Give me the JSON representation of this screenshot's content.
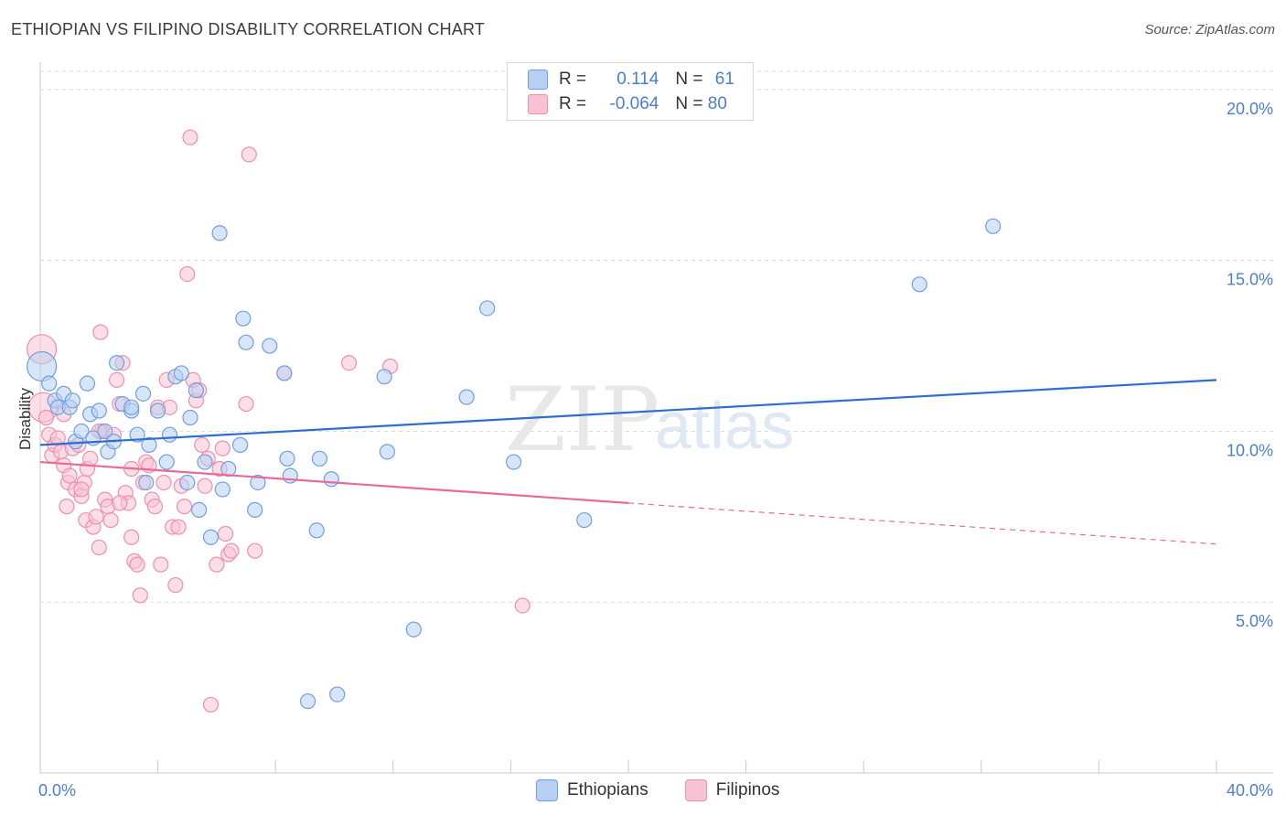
{
  "title": "ETHIOPIAN VS FILIPINO DISABILITY CORRELATION CHART",
  "source": "Source: ZipAtlas.com",
  "watermark": {
    "zip": "ZIP",
    "atlas": "atlas"
  },
  "legend": {
    "rows": [
      {
        "r_label": "R = ",
        "r_value": "0.114",
        "n_label": "N = ",
        "n_value": "61"
      },
      {
        "r_label": "R = ",
        "r_value": "-0.064",
        "n_label": "N = ",
        "n_value": "80"
      }
    ]
  },
  "colors": {
    "ethiopians_fill": "#b7cff2",
    "ethiopians_stroke": "#6f9fe0",
    "ethiopians_line": "#2f6fcc",
    "filipinos_fill": "#f9c2d4",
    "filipinos_stroke": "#ee8fb0",
    "filipinos_line": "#e76a97"
  },
  "chart_data": {
    "type": "scatter",
    "title": "ETHIOPIAN VS FILIPINO DISABILITY CORRELATION CHART",
    "xlabel": "",
    "ylabel": "Disability",
    "xlim": [
      0,
      40
    ],
    "ylim": [
      0,
      20.8
    ],
    "x_tick_labels": {
      "left": "0.0%",
      "right": "40.0%"
    },
    "y_ticks": [
      {
        "value": 5,
        "label": "5.0%"
      },
      {
        "value": 10,
        "label": "10.0%"
      },
      {
        "value": 15,
        "label": "15.0%"
      },
      {
        "value": 20,
        "label": "20.0%"
      }
    ],
    "series": [
      {
        "name": "Ethiopians",
        "r": 0.114,
        "n": 61,
        "trend": {
          "x0": 0,
          "y0": 9.6,
          "x1": 40,
          "y1": 11.5,
          "dashed_from": null
        },
        "points": [
          [
            0.05,
            11.9
          ],
          [
            0.3,
            11.4
          ],
          [
            0.5,
            10.9
          ],
          [
            0.6,
            10.7
          ],
          [
            0.8,
            11.1
          ],
          [
            1.0,
            10.7
          ],
          [
            1.1,
            10.9
          ],
          [
            1.2,
            9.7
          ],
          [
            1.4,
            10.0
          ],
          [
            1.6,
            11.4
          ],
          [
            1.7,
            10.5
          ],
          [
            1.8,
            9.8
          ],
          [
            2.0,
            10.6
          ],
          [
            2.2,
            10.0
          ],
          [
            2.3,
            9.4
          ],
          [
            2.6,
            12.0
          ],
          [
            2.8,
            10.8
          ],
          [
            3.1,
            10.6
          ],
          [
            3.3,
            9.9
          ],
          [
            3.5,
            11.1
          ],
          [
            3.6,
            8.5
          ],
          [
            3.7,
            9.6
          ],
          [
            4.0,
            10.6
          ],
          [
            4.3,
            9.1
          ],
          [
            4.4,
            9.9
          ],
          [
            4.6,
            11.6
          ],
          [
            4.8,
            11.7
          ],
          [
            5.0,
            8.5
          ],
          [
            5.1,
            10.4
          ],
          [
            5.3,
            11.2
          ],
          [
            5.4,
            7.7
          ],
          [
            5.6,
            9.1
          ],
          [
            5.8,
            6.9
          ],
          [
            6.1,
            15.8
          ],
          [
            6.2,
            8.3
          ],
          [
            6.4,
            8.9
          ],
          [
            6.8,
            9.6
          ],
          [
            6.9,
            13.3
          ],
          [
            7.0,
            12.6
          ],
          [
            7.3,
            7.7
          ],
          [
            7.4,
            8.5
          ],
          [
            7.8,
            12.5
          ],
          [
            8.3,
            11.7
          ],
          [
            8.4,
            9.2
          ],
          [
            8.5,
            8.7
          ],
          [
            9.1,
            2.1
          ],
          [
            9.4,
            7.1
          ],
          [
            9.5,
            9.2
          ],
          [
            9.9,
            8.6
          ],
          [
            10.1,
            2.3
          ],
          [
            11.7,
            11.6
          ],
          [
            11.8,
            9.4
          ],
          [
            12.7,
            4.2
          ],
          [
            14.5,
            11.0
          ],
          [
            15.2,
            13.6
          ],
          [
            16.1,
            9.1
          ],
          [
            18.5,
            7.4
          ],
          [
            29.9,
            14.3
          ],
          [
            32.4,
            16.0
          ],
          [
            3.1,
            10.7
          ],
          [
            2.5,
            9.7
          ]
        ]
      },
      {
        "name": "Filipinos",
        "r": -0.064,
        "n": 80,
        "trend": {
          "x0": 0,
          "y0": 9.1,
          "x1": 40,
          "y1": 6.7,
          "dashed_from": 20
        },
        "points": [
          [
            0.05,
            12.4
          ],
          [
            0.1,
            10.7
          ],
          [
            0.2,
            10.4
          ],
          [
            0.3,
            9.9
          ],
          [
            0.4,
            9.3
          ],
          [
            0.5,
            9.6
          ],
          [
            0.6,
            9.8
          ],
          [
            0.7,
            9.4
          ],
          [
            0.8,
            9.0
          ],
          [
            0.9,
            7.8
          ],
          [
            0.95,
            8.5
          ],
          [
            1.0,
            8.7
          ],
          [
            1.1,
            9.5
          ],
          [
            1.2,
            8.3
          ],
          [
            1.3,
            9.6
          ],
          [
            1.4,
            8.1
          ],
          [
            1.5,
            8.5
          ],
          [
            1.55,
            7.4
          ],
          [
            1.6,
            8.9
          ],
          [
            1.7,
            9.2
          ],
          [
            1.8,
            7.2
          ],
          [
            1.9,
            7.5
          ],
          [
            2.0,
            6.6
          ],
          [
            2.05,
            12.9
          ],
          [
            2.1,
            10.0
          ],
          [
            2.2,
            8.0
          ],
          [
            2.3,
            7.8
          ],
          [
            2.4,
            7.4
          ],
          [
            2.5,
            9.9
          ],
          [
            2.6,
            11.5
          ],
          [
            2.7,
            10.8
          ],
          [
            2.8,
            12.0
          ],
          [
            2.9,
            8.2
          ],
          [
            3.0,
            7.9
          ],
          [
            3.1,
            6.9
          ],
          [
            3.2,
            6.2
          ],
          [
            3.3,
            6.1
          ],
          [
            3.4,
            5.2
          ],
          [
            3.5,
            8.5
          ],
          [
            3.6,
            9.1
          ],
          [
            3.7,
            9.0
          ],
          [
            3.8,
            8.0
          ],
          [
            3.9,
            7.8
          ],
          [
            4.0,
            10.7
          ],
          [
            4.1,
            6.1
          ],
          [
            4.2,
            8.5
          ],
          [
            4.3,
            11.5
          ],
          [
            4.4,
            10.7
          ],
          [
            4.5,
            7.2
          ],
          [
            4.6,
            5.5
          ],
          [
            4.7,
            7.2
          ],
          [
            4.8,
            8.4
          ],
          [
            4.9,
            7.8
          ],
          [
            5.0,
            14.6
          ],
          [
            5.1,
            18.6
          ],
          [
            5.2,
            11.5
          ],
          [
            5.3,
            10.9
          ],
          [
            5.4,
            11.2
          ],
          [
            5.5,
            9.6
          ],
          [
            5.6,
            8.4
          ],
          [
            5.7,
            9.2
          ],
          [
            5.8,
            2.0
          ],
          [
            6.0,
            6.1
          ],
          [
            6.1,
            8.9
          ],
          [
            6.2,
            9.5
          ],
          [
            6.3,
            7.0
          ],
          [
            6.4,
            6.4
          ],
          [
            6.5,
            6.5
          ],
          [
            7.0,
            10.8
          ],
          [
            7.1,
            18.1
          ],
          [
            7.3,
            6.5
          ],
          [
            8.3,
            11.7
          ],
          [
            10.5,
            12.0
          ],
          [
            11.9,
            11.9
          ],
          [
            16.4,
            4.9
          ],
          [
            2.0,
            10.0
          ],
          [
            2.7,
            7.9
          ],
          [
            1.4,
            8.3
          ],
          [
            3.1,
            8.9
          ],
          [
            0.8,
            10.5
          ]
        ]
      }
    ],
    "legend": [
      "Ethiopians",
      "Filipinos"
    ]
  },
  "bottom_legend": {
    "ethiopians": "Ethiopians",
    "filipinos": "Filipinos"
  }
}
